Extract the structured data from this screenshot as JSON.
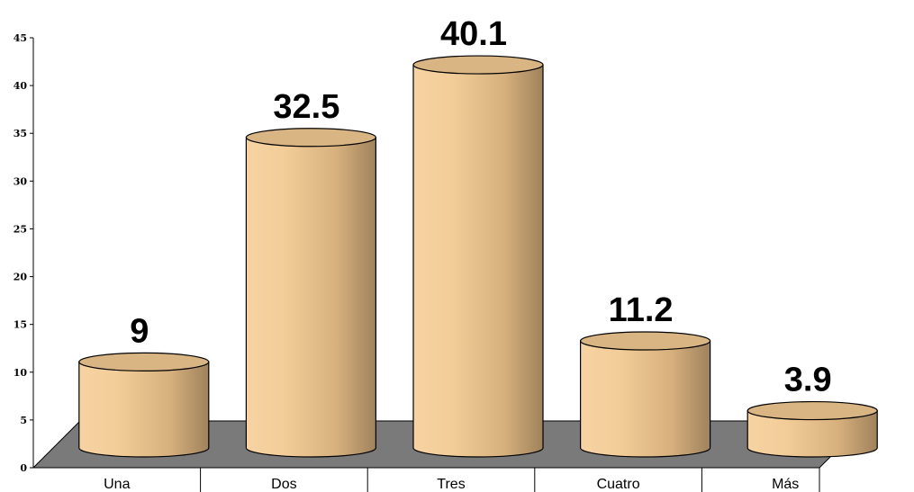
{
  "chart_data": {
    "type": "bar",
    "style": "3d-cylinder",
    "categories": [
      "Una",
      "Dos",
      "Tres",
      "Cuatro",
      "Más"
    ],
    "values": [
      9,
      32.5,
      40.1,
      11.2,
      3.9
    ],
    "data_labels": [
      "9",
      "32.5",
      "40.1",
      "11.2",
      "3.9"
    ],
    "yticks": [
      0,
      5,
      10,
      15,
      20,
      25,
      30,
      35,
      40,
      45
    ],
    "ylim": [
      0,
      45
    ],
    "title": "",
    "xlabel": "",
    "ylabel": "",
    "grid": false,
    "legend": "none",
    "colors": {
      "bar_light": "#f6d09e",
      "bar_mid": "#e8bf8a",
      "bar_dark": "#a5875f",
      "bar_top": "#d9b583",
      "floor": "#7a7a7a"
    }
  }
}
